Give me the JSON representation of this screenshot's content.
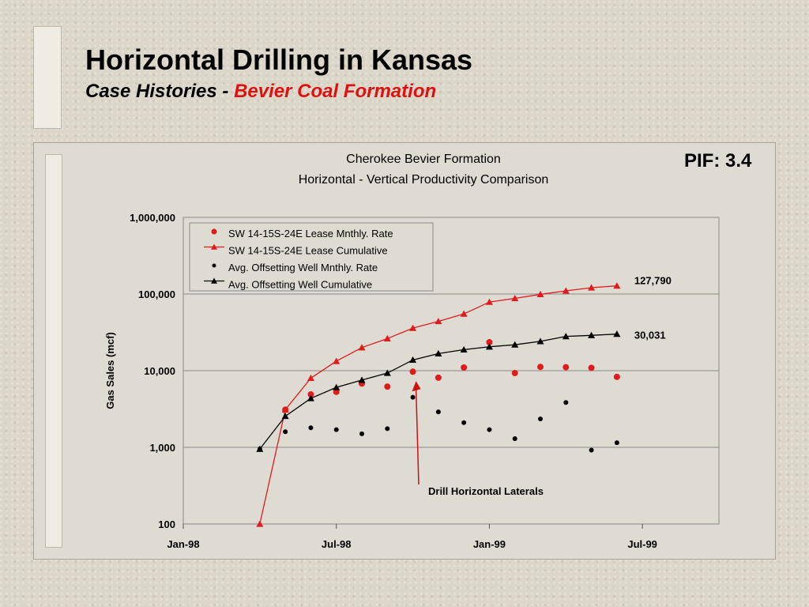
{
  "slide": {
    "title": "Horizontal Drilling in Kansas",
    "subtitle_prefix": "Case Histories - ",
    "subtitle_accent": "Bevier Coal Formation",
    "accent_color": "#dd1111"
  },
  "pif": "PIF: 3.4",
  "chart_data": {
    "type": "scatter",
    "title": "Cherokee Bevier Formation",
    "subtitle": "Horizontal - Vertical Productivity Comparison",
    "ylabel": "Gas Sales (mcf)",
    "xlabel": "",
    "y_scale": "log",
    "ylim": [
      100,
      1000000
    ],
    "y_ticks": [
      100,
      1000,
      10000,
      100000,
      1000000
    ],
    "y_tick_labels": [
      "100",
      "1,000",
      "10,000",
      "100,000",
      "1,000,000"
    ],
    "x_ticks": [
      "1998-01",
      "1998-07",
      "1999-01",
      "1999-07"
    ],
    "x_tick_labels": [
      "Jan-98",
      "Jul-98",
      "Jan-99",
      "Jul-99"
    ],
    "xlim": [
      "1998-01",
      "1999-10"
    ],
    "grid": "horizontal",
    "legend_position": "top-left",
    "series": [
      {
        "name": "SW 14-15S-24E Lease Mnthly. Rate",
        "marker": "circle",
        "line": false,
        "color": "#e01b1b",
        "x": [
          "1998-04",
          "1998-05",
          "1998-06",
          "1998-07",
          "1998-08",
          "1998-09",
          "1998-10",
          "1998-11",
          "1998-12",
          "1999-01",
          "1999-02",
          "1999-03",
          "1999-04",
          "1999-05",
          "1999-06"
        ],
        "values": [
          null,
          3100,
          4900,
          5300,
          6800,
          6200,
          9700,
          8100,
          11000,
          23500,
          9300,
          11200,
          11100,
          10900,
          8300
        ]
      },
      {
        "name": "SW 14-15S-24E Lease Cumulative",
        "marker": "triangle",
        "line": true,
        "color": "#e01b1b",
        "x": [
          "1998-04",
          "1998-05",
          "1998-06",
          "1998-07",
          "1998-08",
          "1998-09",
          "1998-10",
          "1998-11",
          "1998-12",
          "1999-01",
          "1999-02",
          "1999-03",
          "1999-04",
          "1999-05",
          "1999-06"
        ],
        "values": [
          100,
          3100,
          8000,
          13300,
          20000,
          26200,
          35900,
          44000,
          55000,
          78500,
          87800,
          99000,
          110000,
          121000,
          127790
        ]
      },
      {
        "name": "Avg. Offsetting Well Mnthly. Rate",
        "marker": "circle",
        "line": false,
        "color": "#000000",
        "x": [
          "1998-04",
          "1998-05",
          "1998-06",
          "1998-07",
          "1998-08",
          "1998-09",
          "1998-10",
          "1998-11",
          "1998-12",
          "1999-01",
          "1999-02",
          "1999-03",
          "1999-04",
          "1999-05",
          "1999-06"
        ],
        "values": [
          950,
          1600,
          1800,
          1700,
          1500,
          1750,
          4500,
          2900,
          2100,
          1700,
          1300,
          2350,
          3850,
          920,
          1150
        ]
      },
      {
        "name": "Avg. Offsetting Well Cumulative",
        "marker": "triangle",
        "line": true,
        "color": "#000000",
        "x": [
          "1998-04",
          "1998-05",
          "1998-06",
          "1998-07",
          "1998-08",
          "1998-09",
          "1998-10",
          "1998-11",
          "1998-12",
          "1999-01",
          "1999-02",
          "1999-03",
          "1999-04",
          "1999-05",
          "1999-06"
        ],
        "values": [
          950,
          2550,
          4350,
          6050,
          7550,
          9300,
          13800,
          16700,
          18800,
          20500,
          21800,
          24150,
          28000,
          28900,
          30031
        ]
      }
    ],
    "end_labels": [
      "127,790",
      "30,031"
    ],
    "annotation": {
      "text": "Drill Horizontal Laterals",
      "points_to": {
        "x": "1998-10",
        "y": 9700
      }
    }
  }
}
